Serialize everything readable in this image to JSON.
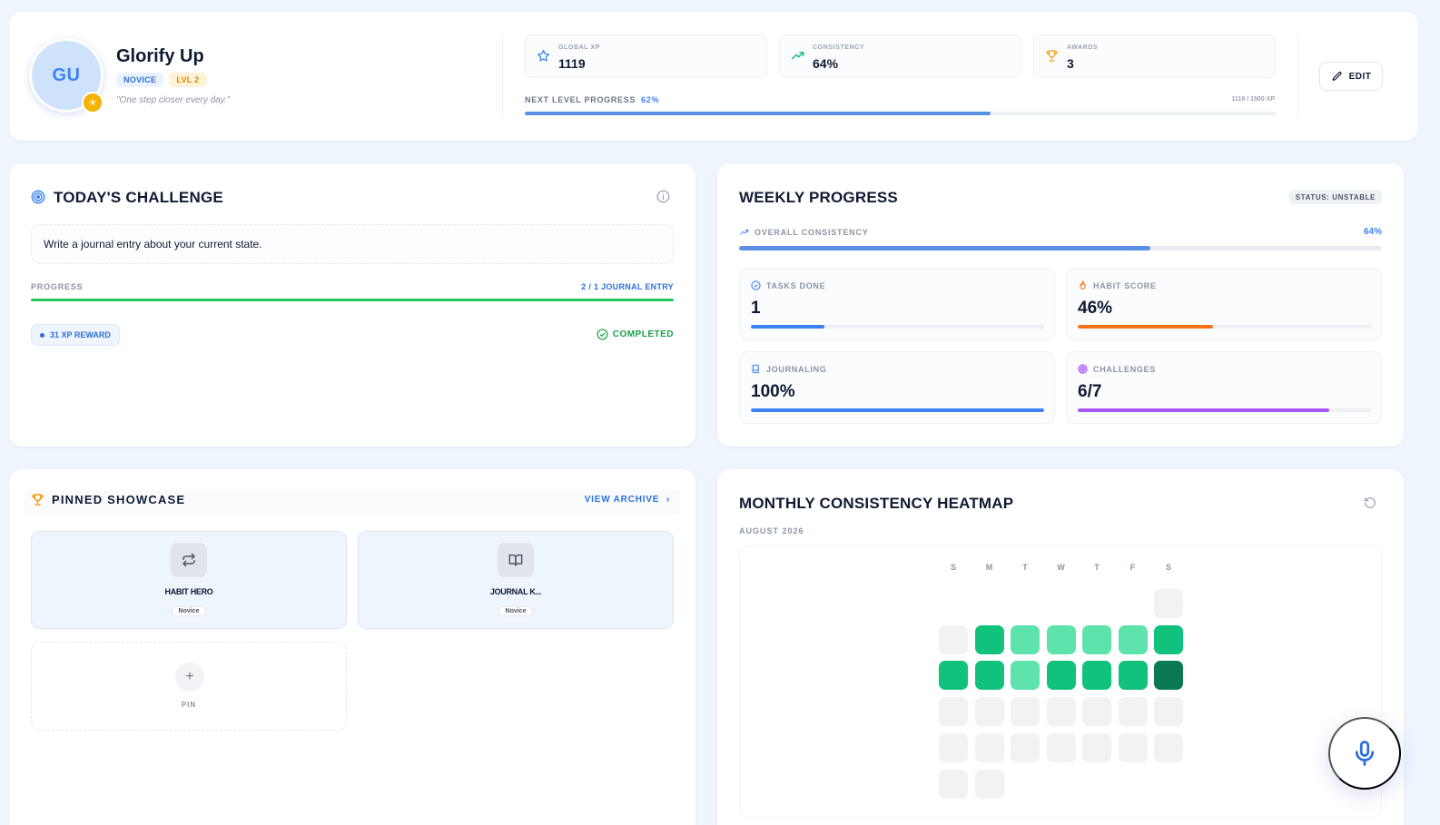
{
  "profile": {
    "initials": "GU",
    "name": "Glorify Up",
    "rank_tag": "NOVICE",
    "level_tag": "LVL 2",
    "quote": "\"One step closer every day.\"",
    "edit_label": "EDIT"
  },
  "stats": [
    {
      "label": "GLOBAL XP",
      "value": "1119",
      "icon": "star-icon",
      "color": "#3b82f6"
    },
    {
      "label": "CONSISTENCY",
      "value": "64%",
      "icon": "trending-up-icon",
      "color": "#10b981"
    },
    {
      "label": "AWARDS",
      "value": "3",
      "icon": "trophy-icon",
      "color": "#f59e0b"
    }
  ],
  "next_level": {
    "label": "NEXT LEVEL PROGRESS",
    "percent_text": "62%",
    "percent": 62,
    "xp_text": "1119 / 1500 XP"
  },
  "challenge": {
    "title": "TODAY'S CHALLENGE",
    "text": "Write a journal entry about your current state.",
    "progress_label": "PROGRESS",
    "progress_count": "2 / 1 JOURNAL ENTRY",
    "progress_percent": 100,
    "reward": "31 XP REWARD",
    "status": "COMPLETED"
  },
  "weekly": {
    "title": "WEEKLY PROGRESS",
    "status": "STATUS: UNSTABLE",
    "overall_label": "OVERALL CONSISTENCY",
    "overall_percent_text": "64%",
    "overall_percent": 64,
    "metrics": [
      {
        "label": "TASKS DONE",
        "value": "1",
        "percent": 25,
        "color": "#3b82f6",
        "icon": "check-circle-icon"
      },
      {
        "label": "HABIT SCORE",
        "value": "46%",
        "percent": 46,
        "color": "#f97316",
        "icon": "flame-icon"
      },
      {
        "label": "JOURNALING",
        "value": "100%",
        "percent": 100,
        "color": "#3b82f6",
        "icon": "book-icon"
      },
      {
        "label": "CHALLENGES",
        "value": "6/7",
        "percent": 85.7,
        "color": "#a855f7",
        "icon": "target-icon"
      }
    ]
  },
  "showcase": {
    "title": "PINNED SHOWCASE",
    "view_archive": "VIEW ARCHIVE",
    "pins": [
      {
        "name": "HABIT HERO",
        "rank": "Novice",
        "icon": "repeat-icon"
      },
      {
        "name": "JOURNAL K...",
        "rank": "Novice",
        "icon": "book-open-icon"
      }
    ],
    "pin_label": "PIN"
  },
  "heatmap": {
    "title": "MONTHLY CONSISTENCY HEATMAP",
    "month": "AUGUST 2026",
    "days": [
      "S",
      "M",
      "T",
      "W",
      "T",
      "F",
      "S"
    ],
    "levels_by_week": [
      [
        null,
        null,
        null,
        null,
        null,
        null,
        0
      ],
      [
        0,
        2,
        1,
        1,
        1,
        1,
        2
      ],
      [
        2,
        2,
        1,
        2,
        2,
        2,
        3
      ],
      [
        0,
        0,
        0,
        0,
        0,
        0,
        0
      ],
      [
        0,
        0,
        0,
        0,
        0,
        0,
        0
      ],
      [
        0,
        0,
        null,
        null,
        null,
        null,
        null
      ]
    ],
    "level_colors": [
      "#f1f2f4",
      "#5ee3ad",
      "#10c27b",
      "#0b7a52"
    ]
  },
  "mic": {
    "icon": "microphone-icon"
  }
}
